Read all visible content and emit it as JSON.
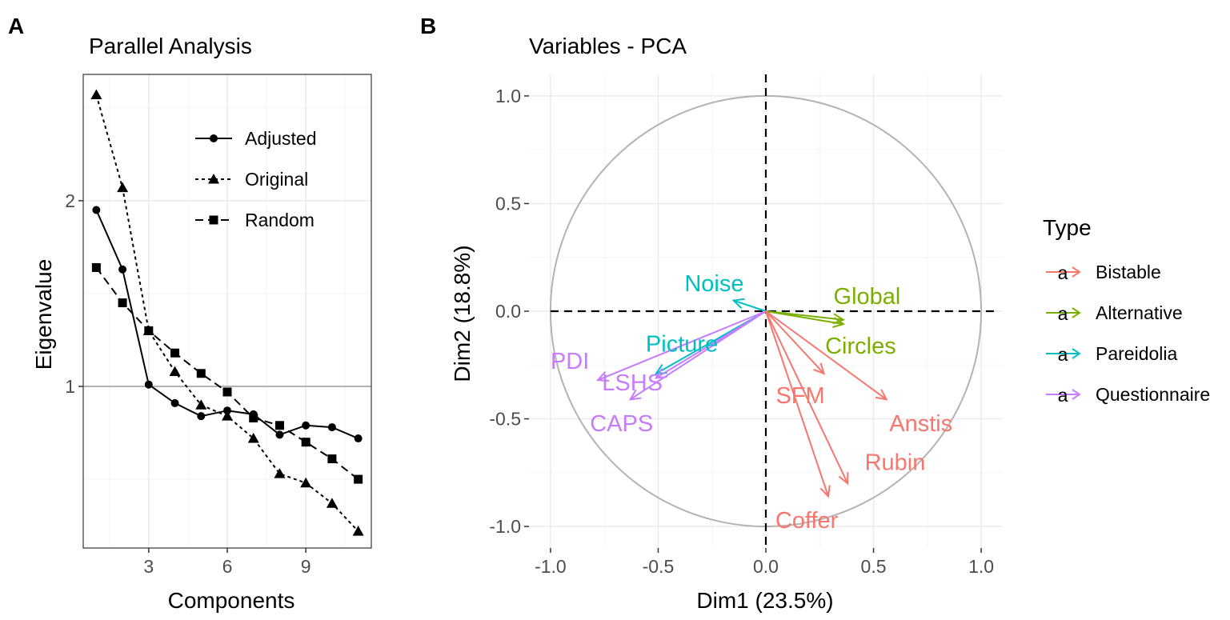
{
  "colors": {
    "Bistable": "#F8766D",
    "Alternative": "#7CAE00",
    "Pareidolia": "#00BFC4",
    "Questionnaire": "#C77CFF",
    "grid": "#ebebeb",
    "circle": "#b3b3b3",
    "refline": "#b3b3b3"
  },
  "chart_data": [
    {
      "type": "line",
      "panel_label": "A",
      "title": "Parallel Analysis",
      "xlabel": "Components",
      "ylabel": "Eigenvalue",
      "xlim": [
        0.5,
        11.5
      ],
      "ylim": [
        0.13,
        2.68
      ],
      "xticks": [
        3,
        6,
        9
      ],
      "yticks": [
        1,
        2
      ],
      "reference_line": 1,
      "x": [
        1,
        2,
        3,
        4,
        5,
        6,
        7,
        8,
        9,
        10,
        11
      ],
      "series": [
        {
          "name": "Adjusted",
          "marker": "circle",
          "dash": "solid",
          "values": [
            1.95,
            1.63,
            1.01,
            0.91,
            0.84,
            0.87,
            0.85,
            0.74,
            0.79,
            0.78,
            0.72
          ]
        },
        {
          "name": "Original",
          "marker": "triangle",
          "dash": "dotted",
          "values": [
            2.57,
            2.07,
            1.3,
            1.08,
            0.9,
            0.84,
            0.72,
            0.53,
            0.48,
            0.37,
            0.22
          ]
        },
        {
          "name": "Random",
          "marker": "square",
          "dash": "dashed",
          "values": [
            1.64,
            1.45,
            1.3,
            1.18,
            1.07,
            0.97,
            0.83,
            0.79,
            0.7,
            0.61,
            0.5
          ]
        }
      ]
    },
    {
      "type": "scatter",
      "panel_label": "B",
      "title": "Variables - PCA",
      "xlabel": "Dim1 (23.5%)",
      "ylabel": "Dim2 (18.8%)",
      "xlim": [
        -1.1,
        1.1
      ],
      "ylim": [
        -1.1,
        1.1
      ],
      "xticks": [
        -1.0,
        -0.5,
        0.0,
        0.5,
        1.0
      ],
      "yticks": [
        -1.0,
        -0.5,
        0.0,
        0.5,
        1.0
      ],
      "xtick_labels": [
        "-1.0",
        "-0.5",
        "0.0",
        "0.5",
        "1.0"
      ],
      "ytick_labels": [
        "-1.0",
        "-0.5",
        "0.0",
        "0.5",
        "1.0"
      ],
      "legend_title": "Type",
      "legend_items": [
        "Bistable",
        "Alternative",
        "Pareidolia",
        "Questionnaire"
      ],
      "legend_key_glyph": "a",
      "variables": [
        {
          "name": "Global",
          "type": "Alternative",
          "x": 0.36,
          "y": -0.04,
          "label_x": 0.47,
          "label_y": 0.07
        },
        {
          "name": "Circles",
          "type": "Alternative",
          "x": 0.36,
          "y": -0.06,
          "label_x": 0.44,
          "label_y": -0.16
        },
        {
          "name": "Noise",
          "type": "Pareidolia",
          "x": -0.15,
          "y": 0.05,
          "label_x": -0.24,
          "label_y": 0.13
        },
        {
          "name": "Picture",
          "type": "Pareidolia",
          "x": -0.51,
          "y": -0.29,
          "label_x": -0.39,
          "label_y": -0.15
        },
        {
          "name": "PDI",
          "type": "Questionnaire",
          "x": -0.78,
          "y": -0.32,
          "label_x": -0.91,
          "label_y": -0.23
        },
        {
          "name": "LSHS",
          "type": "Questionnaire",
          "x": -0.51,
          "y": -0.31,
          "label_x": -0.62,
          "label_y": -0.33
        },
        {
          "name": "CAPS",
          "type": "Questionnaire",
          "x": -0.63,
          "y": -0.41,
          "label_x": -0.67,
          "label_y": -0.52
        },
        {
          "name": "SFM",
          "type": "Bistable",
          "x": 0.27,
          "y": -0.29,
          "label_x": 0.16,
          "label_y": -0.39
        },
        {
          "name": "Anstis",
          "type": "Bistable",
          "x": 0.56,
          "y": -0.41,
          "label_x": 0.72,
          "label_y": -0.52
        },
        {
          "name": "Rubin",
          "type": "Bistable",
          "x": 0.38,
          "y": -0.8,
          "label_x": 0.6,
          "label_y": -0.7
        },
        {
          "name": "Coffer",
          "type": "Bistable",
          "x": 0.29,
          "y": -0.86,
          "label_x": 0.19,
          "label_y": -0.97
        }
      ]
    }
  ]
}
